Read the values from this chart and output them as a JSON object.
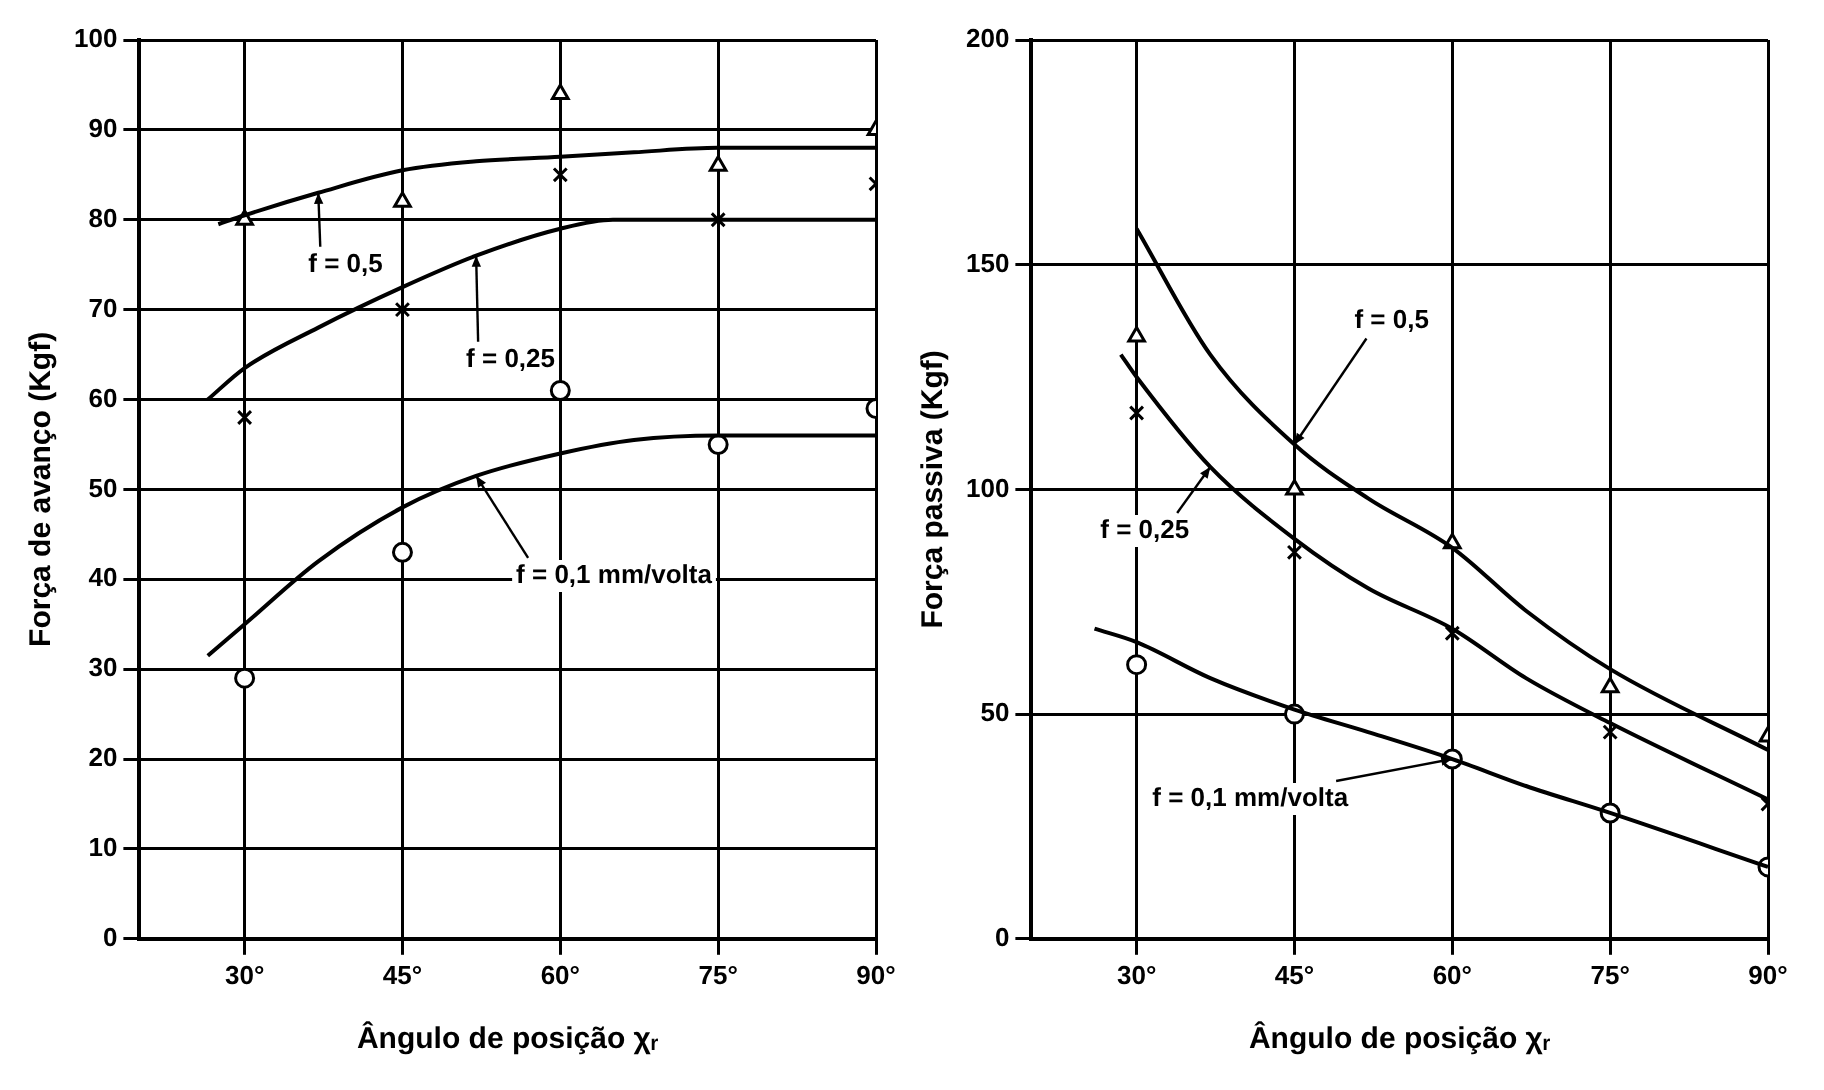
{
  "chart_data": [
    {
      "type": "line",
      "xlabel": "Ângulo de posição χᵣ",
      "ylabel": "Força de avanço (Kgf)",
      "xlim": [
        20,
        90
      ],
      "xticks": [
        {
          "value": 30,
          "label": "30°"
        },
        {
          "value": 45,
          "label": "45°"
        },
        {
          "value": 60,
          "label": "60°"
        },
        {
          "value": 75,
          "label": "75°"
        },
        {
          "value": 90,
          "label": "90°"
        }
      ],
      "ylim": [
        0,
        100
      ],
      "yticks": [
        0,
        10,
        20,
        30,
        40,
        50,
        60,
        70,
        80,
        90,
        100
      ],
      "grid": true,
      "series": [
        {
          "marker": "none",
          "color": "#000000",
          "x": [
            27.5,
            30,
            37,
            45,
            52,
            60,
            67,
            75,
            90
          ],
          "values": [
            79.5,
            80.5,
            83,
            85.5,
            86.5,
            87,
            87.5,
            88,
            88
          ]
        },
        {
          "marker": "none",
          "color": "#000000",
          "x": [
            26.5,
            30,
            37,
            45,
            52,
            60,
            65,
            75,
            90
          ],
          "values": [
            60,
            63.5,
            68,
            72.5,
            76,
            79,
            80,
            80,
            80
          ]
        },
        {
          "marker": "none",
          "color": "#000000",
          "x": [
            26.5,
            30,
            37,
            45,
            52,
            60,
            67,
            75,
            90
          ],
          "values": [
            31.5,
            35,
            42,
            48,
            51.5,
            54,
            55.5,
            56,
            56
          ]
        },
        {
          "type": "scatter",
          "marker": "triangle",
          "color": "#000000",
          "x": [
            30,
            45,
            60,
            75,
            90
          ],
          "values": [
            80,
            82,
            94,
            86,
            90
          ]
        },
        {
          "type": "scatter",
          "marker": "cross",
          "color": "#000000",
          "x": [
            30,
            45,
            60,
            75,
            90
          ],
          "values": [
            58,
            70,
            85,
            80,
            84
          ]
        },
        {
          "type": "scatter",
          "marker": "circle",
          "color": "#000000",
          "x": [
            30,
            45,
            60,
            75,
            90
          ],
          "values": [
            29,
            43,
            61,
            55,
            59
          ]
        }
      ],
      "annotations": [
        {
          "text": "f = 0,5",
          "x": 37,
          "y": 83
        },
        {
          "text": "f = 0,25",
          "x": 52,
          "y": 76
        },
        {
          "text": "f = 0,1 mm/volta",
          "x": 52,
          "y": 51.5
        }
      ]
    },
    {
      "type": "line",
      "xlabel": "Ângulo de posição χᵣ",
      "ylabel": "Força passiva (Kgf)",
      "xlim": [
        20,
        90
      ],
      "xticks": [
        {
          "value": 30,
          "label": "30°"
        },
        {
          "value": 45,
          "label": "45°"
        },
        {
          "value": 60,
          "label": "60°"
        },
        {
          "value": 75,
          "label": "75°"
        },
        {
          "value": 90,
          "label": "90°"
        }
      ],
      "ylim": [
        0,
        200
      ],
      "yticks": [
        0,
        50,
        100,
        150,
        200
      ],
      "grid": true,
      "series": [
        {
          "marker": "none",
          "color": "#000000",
          "x": [
            30,
            37,
            45,
            52,
            60,
            67,
            75,
            90
          ],
          "values": [
            158,
            130,
            110,
            98,
            87,
            73,
            60,
            42
          ]
        },
        {
          "marker": "none",
          "color": "#000000",
          "x": [
            28.5,
            30,
            37,
            45,
            52,
            60,
            67,
            75,
            90
          ],
          "values": [
            130,
            125,
            105,
            89,
            78,
            69,
            58,
            48,
            31
          ]
        },
        {
          "marker": "none",
          "color": "#000000",
          "x": [
            26,
            30,
            37,
            45,
            52,
            60,
            67,
            75,
            90
          ],
          "values": [
            69,
            66,
            58,
            51,
            46,
            40,
            34,
            28,
            16
          ]
        },
        {
          "type": "scatter",
          "marker": "triangle",
          "color": "#000000",
          "x": [
            30,
            45,
            60,
            75,
            90
          ],
          "values": [
            134,
            100,
            88,
            56,
            45
          ]
        },
        {
          "type": "scatter",
          "marker": "cross",
          "color": "#000000",
          "x": [
            30,
            45,
            60,
            75,
            90
          ],
          "values": [
            117,
            86,
            68,
            46,
            30
          ]
        },
        {
          "type": "scatter",
          "marker": "circle",
          "color": "#000000",
          "x": [
            30,
            45,
            60,
            75,
            90
          ],
          "values": [
            61,
            50,
            40,
            28,
            16
          ]
        }
      ],
      "annotations": [
        {
          "text": "f = 0,5",
          "x": 45,
          "y": 110
        },
        {
          "text": "f = 0,25",
          "x": 37,
          "y": 105
        },
        {
          "text": "f = 0,1 mm/volta",
          "x": 60,
          "y": 40
        }
      ]
    }
  ]
}
